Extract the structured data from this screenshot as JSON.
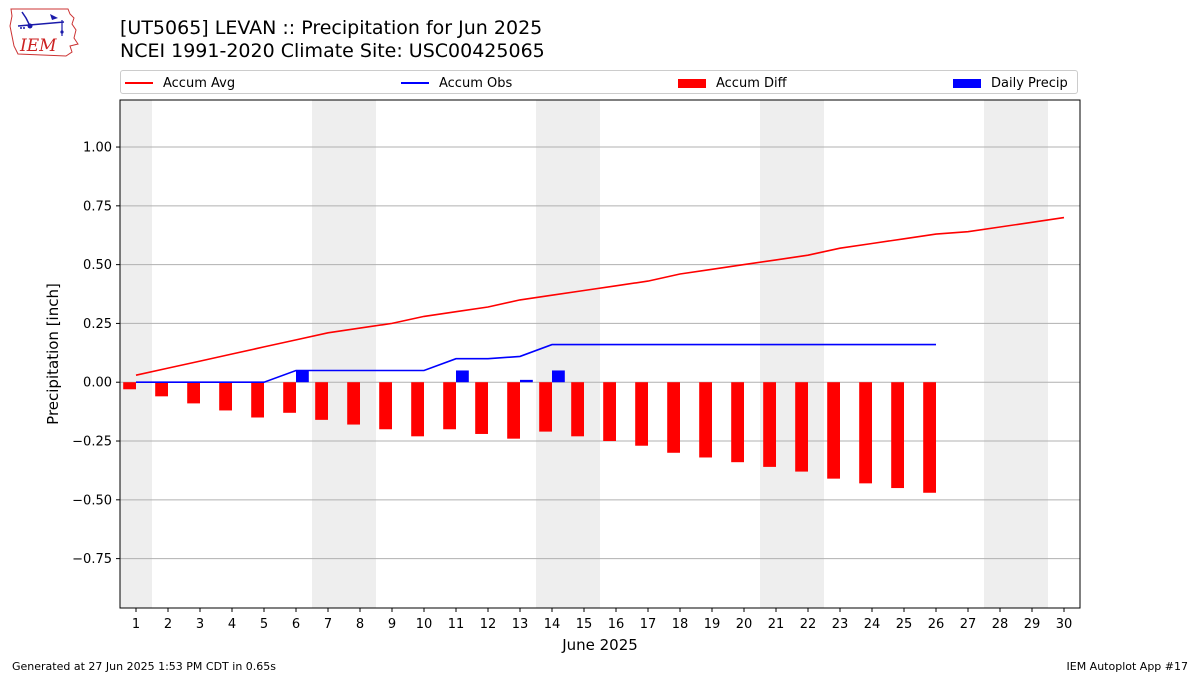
{
  "header": {
    "title_line1": "[UT5065] LEVAN :: Precipitation for Jun 2025",
    "title_line2": "NCEI 1991-2020 Climate Site: USC00425065"
  },
  "logo": {
    "text": "IEM",
    "icon": "iem-iowa-logo-icon"
  },
  "legend": {
    "accum_avg": "Accum Avg",
    "accum_obs": "Accum Obs",
    "accum_diff": "Accum Diff",
    "daily_precip": "Daily Precip"
  },
  "footer": {
    "generated": "Generated at 27 Jun 2025 1:53 PM CDT in 0.65s",
    "app": "IEM Autoplot App #17"
  },
  "colors": {
    "avg": "#ff0000",
    "obs": "#0000ff",
    "diff": "#ff0000",
    "daily": "#0000ff",
    "weekend": "#eeeeee",
    "grid": "#b0b0b0"
  },
  "chart_data": {
    "type": "bar",
    "xlabel": "June 2025",
    "ylabel": "Precipitation [inch]",
    "xlim": [
      0.5,
      30.5
    ],
    "ylim": [
      -0.96,
      1.2
    ],
    "yticks": [
      -0.75,
      -0.5,
      -0.25,
      0.0,
      0.25,
      0.5,
      0.75,
      1.0
    ],
    "ytick_labels": [
      "−0.75",
      "−0.50",
      "−0.25",
      "0.00",
      "0.25",
      "0.50",
      "0.75",
      "1.00"
    ],
    "days": [
      1,
      2,
      3,
      4,
      5,
      6,
      7,
      8,
      9,
      10,
      11,
      12,
      13,
      14,
      15,
      16,
      17,
      18,
      19,
      20,
      21,
      22,
      23,
      24,
      25,
      26,
      27,
      28,
      29,
      30
    ],
    "weekend_days": [
      1,
      7,
      8,
      14,
      15,
      21,
      22,
      28,
      29
    ],
    "grid": "horizontal",
    "legend_position": "top",
    "series": [
      {
        "name": "Accum Avg",
        "kind": "line",
        "x": [
          1,
          2,
          3,
          4,
          5,
          6,
          7,
          8,
          9,
          10,
          11,
          12,
          13,
          14,
          15,
          16,
          17,
          18,
          19,
          20,
          21,
          22,
          23,
          24,
          25,
          26,
          27,
          28,
          29,
          30
        ],
        "values": [
          0.03,
          0.06,
          0.09,
          0.12,
          0.15,
          0.18,
          0.21,
          0.23,
          0.25,
          0.28,
          0.3,
          0.32,
          0.35,
          0.37,
          0.39,
          0.41,
          0.43,
          0.46,
          0.48,
          0.5,
          0.52,
          0.54,
          0.57,
          0.59,
          0.61,
          0.63,
          0.64,
          0.66,
          0.68,
          0.7
        ]
      },
      {
        "name": "Accum Obs",
        "kind": "line",
        "x": [
          1,
          2,
          3,
          4,
          5,
          6,
          7,
          8,
          9,
          10,
          11,
          12,
          13,
          14,
          15,
          16,
          17,
          18,
          19,
          20,
          21,
          22,
          23,
          24,
          25,
          26
        ],
        "values": [
          0.0,
          0.0,
          0.0,
          0.0,
          0.0,
          0.05,
          0.05,
          0.05,
          0.05,
          0.05,
          0.1,
          0.1,
          0.11,
          0.16,
          0.16,
          0.16,
          0.16,
          0.16,
          0.16,
          0.16,
          0.16,
          0.16,
          0.16,
          0.16,
          0.16,
          0.16
        ]
      },
      {
        "name": "Accum Diff",
        "kind": "bar",
        "x": [
          1,
          2,
          3,
          4,
          5,
          6,
          7,
          8,
          9,
          10,
          11,
          12,
          13,
          14,
          15,
          16,
          17,
          18,
          19,
          20,
          21,
          22,
          23,
          24,
          25,
          26
        ],
        "values": [
          -0.03,
          -0.06,
          -0.09,
          -0.12,
          -0.15,
          -0.13,
          -0.16,
          -0.18,
          -0.2,
          -0.23,
          -0.2,
          -0.22,
          -0.24,
          -0.21,
          -0.23,
          -0.25,
          -0.27,
          -0.3,
          -0.32,
          -0.34,
          -0.36,
          -0.38,
          -0.41,
          -0.43,
          -0.45,
          -0.47
        ]
      },
      {
        "name": "Daily Precip",
        "kind": "bar",
        "x": [
          6,
          11,
          13,
          14
        ],
        "values": [
          0.05,
          0.05,
          0.01,
          0.05
        ]
      }
    ]
  }
}
